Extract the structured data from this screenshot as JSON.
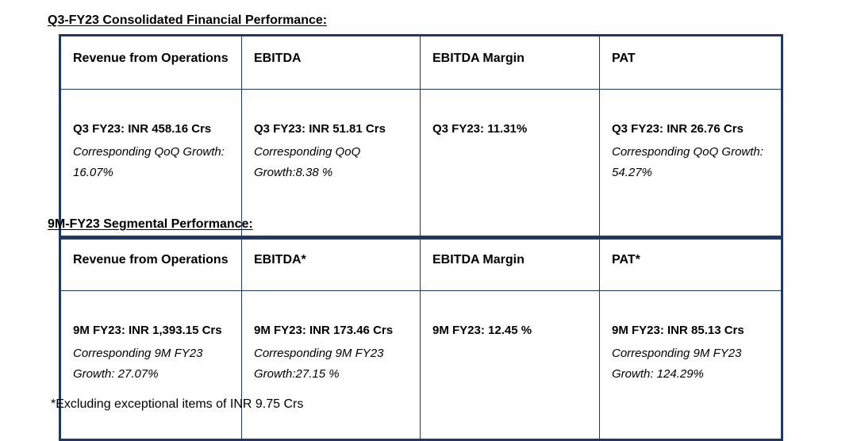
{
  "q3": {
    "heading": "Q3-FY23 Consolidated Financial Performance:",
    "headers": [
      "Revenue from Operations",
      "EBITDA",
      "EBITDA Margin",
      "PAT"
    ],
    "cells": [
      {
        "value": "Q3 FY23: INR 458.16 Crs",
        "note": "Corresponding QoQ Growth: 16.07%"
      },
      {
        "value": "Q3 FY23: INR 51.81 Crs",
        "note": "Corresponding QoQ Growth:8.38 %"
      },
      {
        "value": "Q3 FY23: 11.31%",
        "note": ""
      },
      {
        "value": "Q3 FY23: INR 26.76 Crs",
        "note": "Corresponding QoQ Growth: 54.27%"
      }
    ]
  },
  "nm": {
    "heading": "9M-FY23 Segmental Performance:",
    "headers": [
      "Revenue from Operations",
      "EBITDA*",
      "EBITDA Margin",
      "PAT*"
    ],
    "cells": [
      {
        "value": "9M FY23: INR 1,393.15 Crs",
        "note": "Corresponding 9M FY23 Growth: 27.07%"
      },
      {
        "value": "9M FY23: INR 173.46 Crs",
        "note": "Corresponding 9M FY23 Growth:27.15 %"
      },
      {
        "value": "9M FY23: 12.45 %",
        "note": ""
      },
      {
        "value": "9M FY23: INR 85.13 Crs",
        "note": "Corresponding 9M FY23 Growth: 124.29%"
      }
    ]
  },
  "footnote": "*Excluding exceptional items of INR 9.75 Crs"
}
